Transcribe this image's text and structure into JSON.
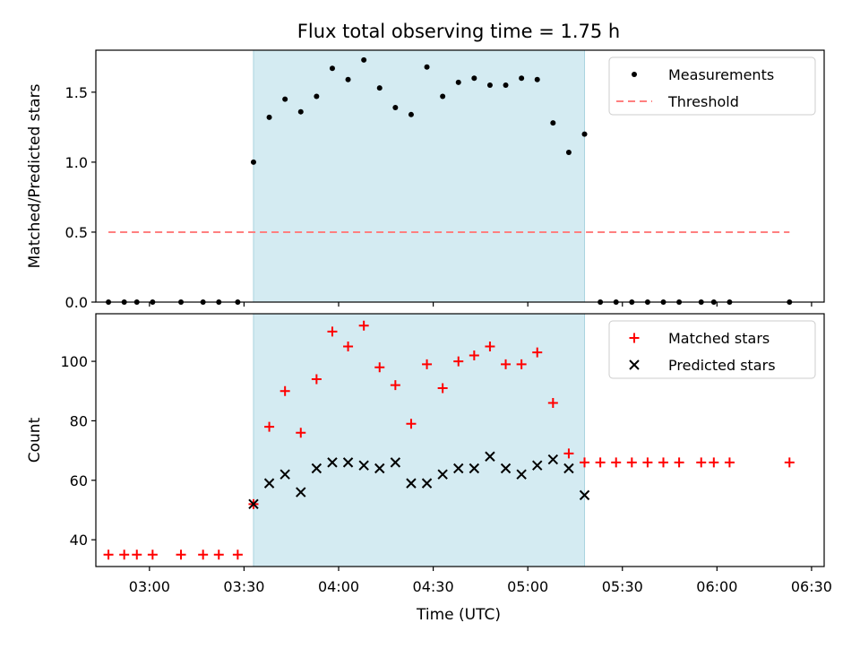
{
  "chart_data": {
    "title": "Flux total observing time = 1.75 h",
    "xlabel": "Time (UTC)",
    "x_ticks": [
      "03:00",
      "03:30",
      "04:00",
      "04:30",
      "05:00",
      "05:30",
      "06:00",
      "06:30"
    ],
    "x_range": [
      "02:43",
      "06:34"
    ],
    "shaded_interval": {
      "start": "03:33",
      "end": "05:18",
      "color": "#d4ebf2"
    },
    "panels": [
      {
        "type": "scatter",
        "ylabel": "Matched/Predicted stars",
        "ylim": [
          0,
          1.8
        ],
        "y_ticks": [
          "0.0",
          "0.5",
          "1.0",
          "1.5"
        ],
        "legend_position": "upper-right",
        "series": [
          {
            "name": "Measurements",
            "marker": "dot",
            "color": "#000000",
            "points": [
              [
                "02:47",
                0
              ],
              [
                "02:52",
                0
              ],
              [
                "02:56",
                0
              ],
              [
                "03:01",
                0
              ],
              [
                "03:10",
                0
              ],
              [
                "03:17",
                0
              ],
              [
                "03:22",
                0
              ],
              [
                "03:28",
                0
              ],
              [
                "03:33",
                1.0
              ],
              [
                "03:38",
                1.32
              ],
              [
                "03:43",
                1.45
              ],
              [
                "03:48",
                1.36
              ],
              [
                "03:53",
                1.47
              ],
              [
                "03:58",
                1.67
              ],
              [
                "04:03",
                1.59
              ],
              [
                "04:08",
                1.73
              ],
              [
                "04:13",
                1.53
              ],
              [
                "04:18",
                1.39
              ],
              [
                "04:23",
                1.34
              ],
              [
                "04:28",
                1.68
              ],
              [
                "04:33",
                1.47
              ],
              [
                "04:38",
                1.57
              ],
              [
                "04:43",
                1.6
              ],
              [
                "04:48",
                1.55
              ],
              [
                "04:53",
                1.55
              ],
              [
                "04:58",
                1.6
              ],
              [
                "05:03",
                1.59
              ],
              [
                "05:08",
                1.28
              ],
              [
                "05:13",
                1.07
              ],
              [
                "05:18",
                1.2
              ],
              [
                "05:23",
                0
              ],
              [
                "05:28",
                0
              ],
              [
                "05:33",
                0
              ],
              [
                "05:38",
                0
              ],
              [
                "05:43",
                0
              ],
              [
                "05:48",
                0
              ],
              [
                "05:55",
                0
              ],
              [
                "05:59",
                0
              ],
              [
                "06:04",
                0
              ],
              [
                "06:23",
                0
              ]
            ]
          },
          {
            "name": "Threshold",
            "marker": "dashed-line",
            "color": "#ff7f7f",
            "points": [
              [
                "02:47",
                0.5
              ],
              [
                "06:23",
                0.5
              ]
            ]
          }
        ]
      },
      {
        "type": "scatter",
        "ylabel": "Count",
        "ylim": [
          31,
          116
        ],
        "y_ticks": [
          "40",
          "60",
          "80",
          "100"
        ],
        "legend_position": "upper-right",
        "series": [
          {
            "name": "Matched stars",
            "marker": "plus",
            "color": "#ff0000",
            "points": [
              [
                "02:47",
                35
              ],
              [
                "02:52",
                35
              ],
              [
                "02:56",
                35
              ],
              [
                "03:01",
                35
              ],
              [
                "03:10",
                35
              ],
              [
                "03:17",
                35
              ],
              [
                "03:22",
                35
              ],
              [
                "03:28",
                35
              ],
              [
                "03:33",
                52
              ],
              [
                "03:38",
                78
              ],
              [
                "03:43",
                90
              ],
              [
                "03:48",
                76
              ],
              [
                "03:53",
                94
              ],
              [
                "03:58",
                110
              ],
              [
                "04:03",
                105
              ],
              [
                "04:08",
                112
              ],
              [
                "04:13",
                98
              ],
              [
                "04:18",
                92
              ],
              [
                "04:23",
                79
              ],
              [
                "04:28",
                99
              ],
              [
                "04:33",
                91
              ],
              [
                "04:38",
                100
              ],
              [
                "04:43",
                102
              ],
              [
                "04:48",
                105
              ],
              [
                "04:53",
                99
              ],
              [
                "04:58",
                99
              ],
              [
                "05:03",
                103
              ],
              [
                "05:08",
                86
              ],
              [
                "05:13",
                69
              ],
              [
                "05:18",
                66
              ],
              [
                "05:23",
                66
              ],
              [
                "05:28",
                66
              ],
              [
                "05:33",
                66
              ],
              [
                "05:38",
                66
              ],
              [
                "05:43",
                66
              ],
              [
                "05:48",
                66
              ],
              [
                "05:55",
                66
              ],
              [
                "05:59",
                66
              ],
              [
                "06:04",
                66
              ],
              [
                "06:23",
                66
              ]
            ]
          },
          {
            "name": "Predicted stars",
            "marker": "cross",
            "color": "#000000",
            "points": [
              [
                "03:33",
                52
              ],
              [
                "03:38",
                59
              ],
              [
                "03:43",
                62
              ],
              [
                "03:48",
                56
              ],
              [
                "03:53",
                64
              ],
              [
                "03:58",
                66
              ],
              [
                "04:03",
                66
              ],
              [
                "04:08",
                65
              ],
              [
                "04:13",
                64
              ],
              [
                "04:18",
                66
              ],
              [
                "04:23",
                59
              ],
              [
                "04:28",
                59
              ],
              [
                "04:33",
                62
              ],
              [
                "04:38",
                64
              ],
              [
                "04:43",
                64
              ],
              [
                "04:48",
                68
              ],
              [
                "04:53",
                64
              ],
              [
                "04:58",
                62
              ],
              [
                "05:03",
                65
              ],
              [
                "05:08",
                67
              ],
              [
                "05:13",
                64
              ],
              [
                "05:18",
                55
              ]
            ]
          }
        ]
      }
    ]
  }
}
